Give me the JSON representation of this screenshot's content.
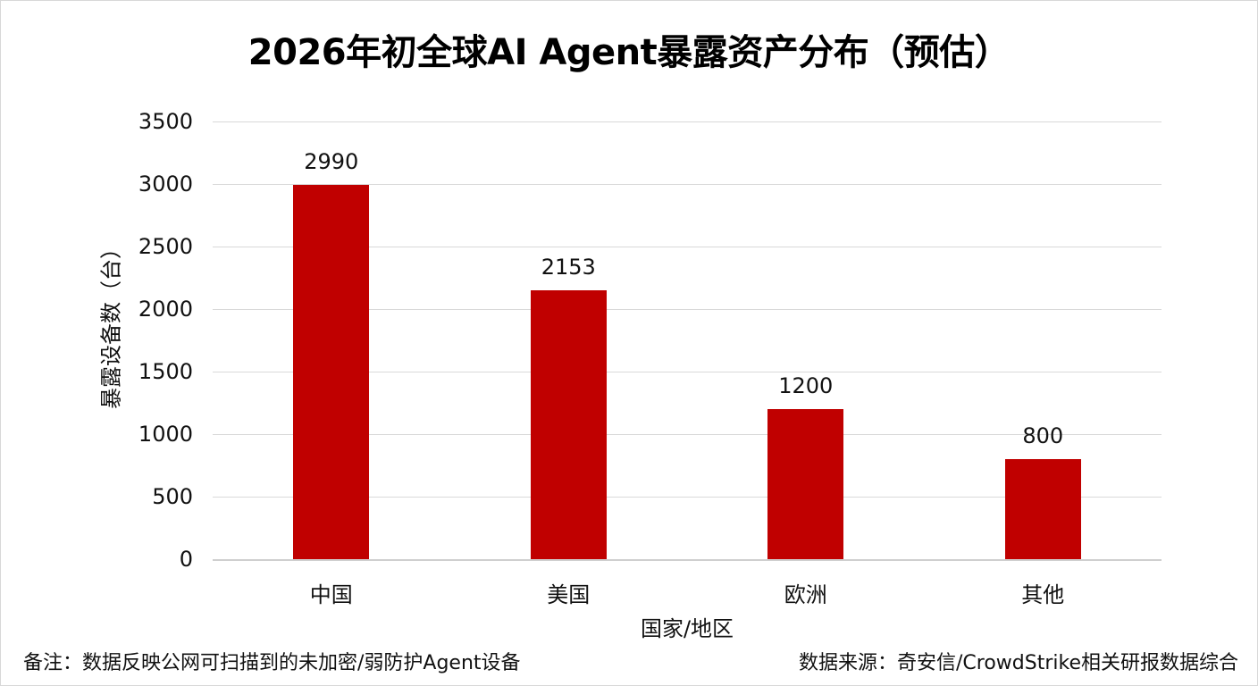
{
  "title": "2026年初全球AI Agent暴露资产分布（预估）",
  "footer": {
    "note": "备注：数据反映公网可扫描到的未加密/弱防护Agent设备",
    "source": "数据来源：奇安信/CrowdStrike相关研报数据综合"
  },
  "axes": {
    "xlabel": "国家/地区",
    "ylabel": "暴露设备数（台）",
    "yticks": [
      "0",
      "500",
      "1000",
      "1500",
      "2000",
      "2500",
      "3000",
      "3500"
    ]
  },
  "colors": {
    "bar": "#c00000",
    "grid": "#d9d9d9"
  },
  "chart_data": {
    "type": "bar",
    "title": "2026年初全球AI Agent暴露资产分布（预估）",
    "categories": [
      "中国",
      "美国",
      "欧洲",
      "其他"
    ],
    "values": [
      2990,
      2153,
      1200,
      800
    ],
    "xlabel": "国家/地区",
    "ylabel": "暴露设备数（台）",
    "ylim": [
      0,
      3500
    ],
    "yticks": [
      0,
      500,
      1000,
      1500,
      2000,
      2500,
      3000,
      3500
    ],
    "grid": true,
    "legend": null,
    "data_labels": [
      "2990",
      "2153",
      "1200",
      "800"
    ],
    "bar_color": "#c00000"
  }
}
